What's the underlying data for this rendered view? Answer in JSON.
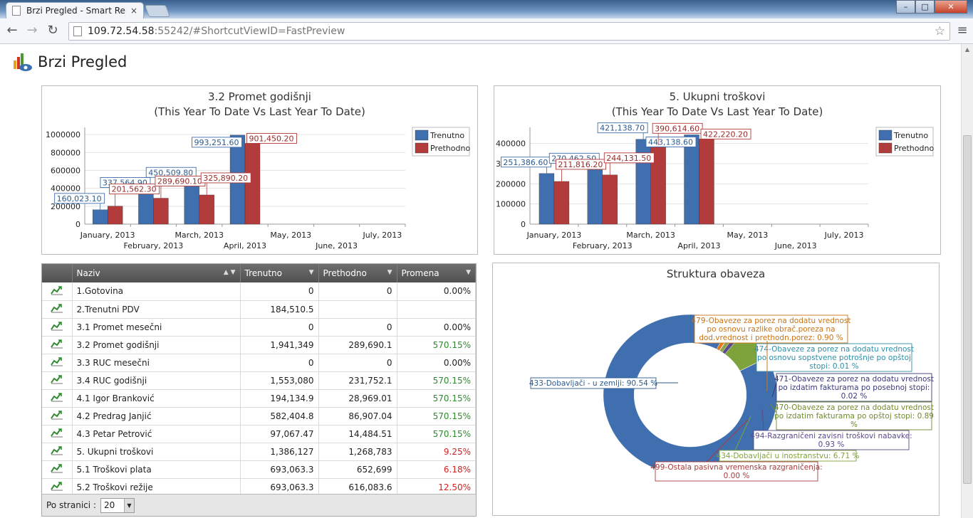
{
  "browser": {
    "tab_title": "Brzi Pregled - Smart Repor",
    "tab_close": "×",
    "url_host": "109.72.54.58",
    "url_rest": ":55242/#ShortcutViewID=FastPreview"
  },
  "page": {
    "title": "Brzi Pregled"
  },
  "chart1": {
    "title_line1": "3.2 Promet godišnji",
    "title_line2": "(This Year To Date Vs Last Year To Date)"
  },
  "chart2": {
    "title_line1": "5. Ukupni troškovi",
    "title_line2": "(This Year To Date Vs Last Year To Date)"
  },
  "chart3": {
    "title": "Struktura obaveza"
  },
  "chart_data": [
    {
      "type": "bar",
      "title": "3.2 Promet godišnji (This Year To Date Vs Last Year To Date)",
      "categories": [
        "January, 2013",
        "February, 2013",
        "March, 2013",
        "April, 2013",
        "May, 2013",
        "June, 2013",
        "July, 2013"
      ],
      "series": [
        {
          "name": "Trenutno",
          "color": "#3f6fae",
          "values": [
            160023.1,
            337564.9,
            450509.8,
            993251.6,
            0,
            0,
            0
          ]
        },
        {
          "name": "Prethodno",
          "color": "#b23b3b",
          "values": [
            201562.3,
            289690.1,
            325890.2,
            901450.2,
            0,
            0,
            0
          ]
        }
      ],
      "data_labels": {
        "Trenutno": [
          "160,023.10",
          "337,564.90",
          "450,509.80",
          "993,251.60"
        ],
        "Prethodno": [
          "201,562.30",
          "289,690.10",
          "325,890.20",
          "901,450.20"
        ]
      },
      "yticks": [
        "0",
        "200000",
        "400000",
        "600000",
        "800000",
        "1000000"
      ],
      "ylim": [
        0,
        1080000
      ],
      "legend": "top-right",
      "grid": true
    },
    {
      "type": "bar",
      "title": "5. Ukupni troškovi (This Year To Date Vs Last Year To Date)",
      "categories": [
        "January, 2013",
        "February, 2013",
        "March, 2013",
        "April, 2013",
        "May, 2013",
        "June, 2013",
        "July, 2013"
      ],
      "series": [
        {
          "name": "Trenutno",
          "color": "#3f6fae",
          "values": [
            251386.6,
            270462.5,
            421138.7,
            443138.6,
            0,
            0,
            0
          ]
        },
        {
          "name": "Prethodno",
          "color": "#b23b3b",
          "values": [
            211816.2,
            244131.5,
            390614.6,
            422220.2,
            0,
            0,
            0
          ]
        }
      ],
      "data_labels": {
        "Trenutno": [
          "251,386.60",
          "270,462.50",
          "421,138.70",
          "443,138.60"
        ],
        "Prethodno": [
          "211,816.20",
          "244,131.50",
          "390,614.60",
          "422,220.20"
        ]
      },
      "yticks": [
        "0",
        "100000",
        "200000",
        "300000",
        "400000"
      ],
      "ylim": [
        0,
        480000
      ],
      "legend": "top-right",
      "grid": true
    },
    {
      "type": "pie",
      "title": "Struktura obaveza",
      "donut": true,
      "slices": [
        {
          "label": "433-Dobavljači - u zemlji: 90.54 %",
          "value": 90.54,
          "color": "#3f6fae"
        },
        {
          "label": "479-Obaveze za porez na dodatu vrednost po osnovu razlike obrač.poreza na dod.vrednost i prethodn.porez: 0.90 %",
          "value": 0.9,
          "color": "#e07b1d"
        },
        {
          "label": "474-Obaveze za porez na dodatu vrednost po osnovu sopstvene potrošnje po opštoj stopi: 0.01 %",
          "value": 0.01,
          "color": "#2f8fa8"
        },
        {
          "label": "471-Obaveze za porez na dodatu vrednost po izdatim fakturama po posebnoj stopi: 0.02 %",
          "value": 0.02,
          "color": "#3a3a7a"
        },
        {
          "label": "470-Obaveze za porez na dodatu vrednost po izdatim fakturama po opštoj stopi: 0.89 %",
          "value": 0.89,
          "color": "#8aa24a"
        },
        {
          "label": "494-Razgraničeni zavisni troškovi nabavke: 0.93 %",
          "value": 0.93,
          "color": "#5a4a8a"
        },
        {
          "label": "434-Dobavljači u inostranstvu: 6.71 %",
          "value": 6.71,
          "color": "#7fa33c"
        },
        {
          "label": "499-Ostala pasivna vremenska razgraničenja: 0.00 %",
          "value": 0.0,
          "color": "#a83a3a"
        }
      ]
    }
  ],
  "pie_labels": {
    "l479": [
      "479-Obaveze za porez na dodatu vrednost",
      "po osnovu razlike obrač.poreza na",
      "dod.vrednost i prethodn.porez: 0.90 %"
    ],
    "l474": [
      "474-Obaveze za porez na dodatu vrednost",
      "po osnovu sopstvene potrošnje po opštoj",
      "stopi: 0.01 %"
    ],
    "l471": [
      "471-Obaveze za porez na dodatu vrednost",
      "po izdatim fakturama po posebnoj stopi:",
      "0.02 %"
    ],
    "l470": [
      "470-Obaveze za porez na dodatu vrednost",
      "po izdatim fakturama po opštoj stopi: 0.89",
      "%"
    ],
    "l494": [
      "494-Razgraničeni zavisni troškovi nabavke:",
      "0.93 %"
    ],
    "l434": [
      "434-Dobavljači u inostranstvu: 6.71 %"
    ],
    "l499": [
      "499-Ostala pasivna vremenska razgraničenja:",
      "0.00 %"
    ],
    "l433": [
      "433-Dobavljači - u zemlji: 90.54 %"
    ]
  },
  "grid": {
    "headers": {
      "naziv": "Naziv",
      "trenutno": "Trenutno",
      "prethodno": "Prethodno",
      "promena": "Promena"
    },
    "rows": [
      {
        "naziv": "1.Gotovina",
        "trenutno": "0",
        "prethodno": "0",
        "promena": "0.00%",
        "trend": "zero"
      },
      {
        "naziv": "2.Trenutni PDV",
        "trenutno": "184,510.5",
        "prethodno": "",
        "promena": "",
        "trend": "zero"
      },
      {
        "naziv": "3.1 Promet mesečni",
        "trenutno": "0",
        "prethodno": "0",
        "promena": "0.00%",
        "trend": "zero"
      },
      {
        "naziv": "3.2 Promet godišnji",
        "trenutno": "1,941,349",
        "prethodno": "289,690.1",
        "promena": "570.15%",
        "trend": "pos"
      },
      {
        "naziv": "3.3 RUC mesečni",
        "trenutno": "0",
        "prethodno": "0",
        "promena": "0.00%",
        "trend": "zero"
      },
      {
        "naziv": "3.4 RUC godišnji",
        "trenutno": "1,553,080",
        "prethodno": "231,752.1",
        "promena": "570.15%",
        "trend": "pos"
      },
      {
        "naziv": "4.1 Igor Branković",
        "trenutno": "194,134.9",
        "prethodno": "28,969.01",
        "promena": "570.15%",
        "trend": "pos"
      },
      {
        "naziv": "4.2 Predrag Janjić",
        "trenutno": "582,404.8",
        "prethodno": "86,907.04",
        "promena": "570.15%",
        "trend": "pos"
      },
      {
        "naziv": "4.3 Petar Petrović",
        "trenutno": "97,067.47",
        "prethodno": "14,484.51",
        "promena": "570.15%",
        "trend": "pos"
      },
      {
        "naziv": "5. Ukupni troškovi",
        "trenutno": "1,386,127",
        "prethodno": "1,268,783",
        "promena": "9.25%",
        "trend": "neg"
      },
      {
        "naziv": "5.1 Troškovi plata",
        "trenutno": "693,063.3",
        "prethodno": "652,699",
        "promena": "6.18%",
        "trend": "neg"
      },
      {
        "naziv": "5.2 Troškovi režije",
        "trenutno": "693,063.3",
        "prethodno": "616,083.6",
        "promena": "12.50%",
        "trend": "neg"
      }
    ],
    "pager_label": "Po stranici :",
    "page_size": "20"
  }
}
